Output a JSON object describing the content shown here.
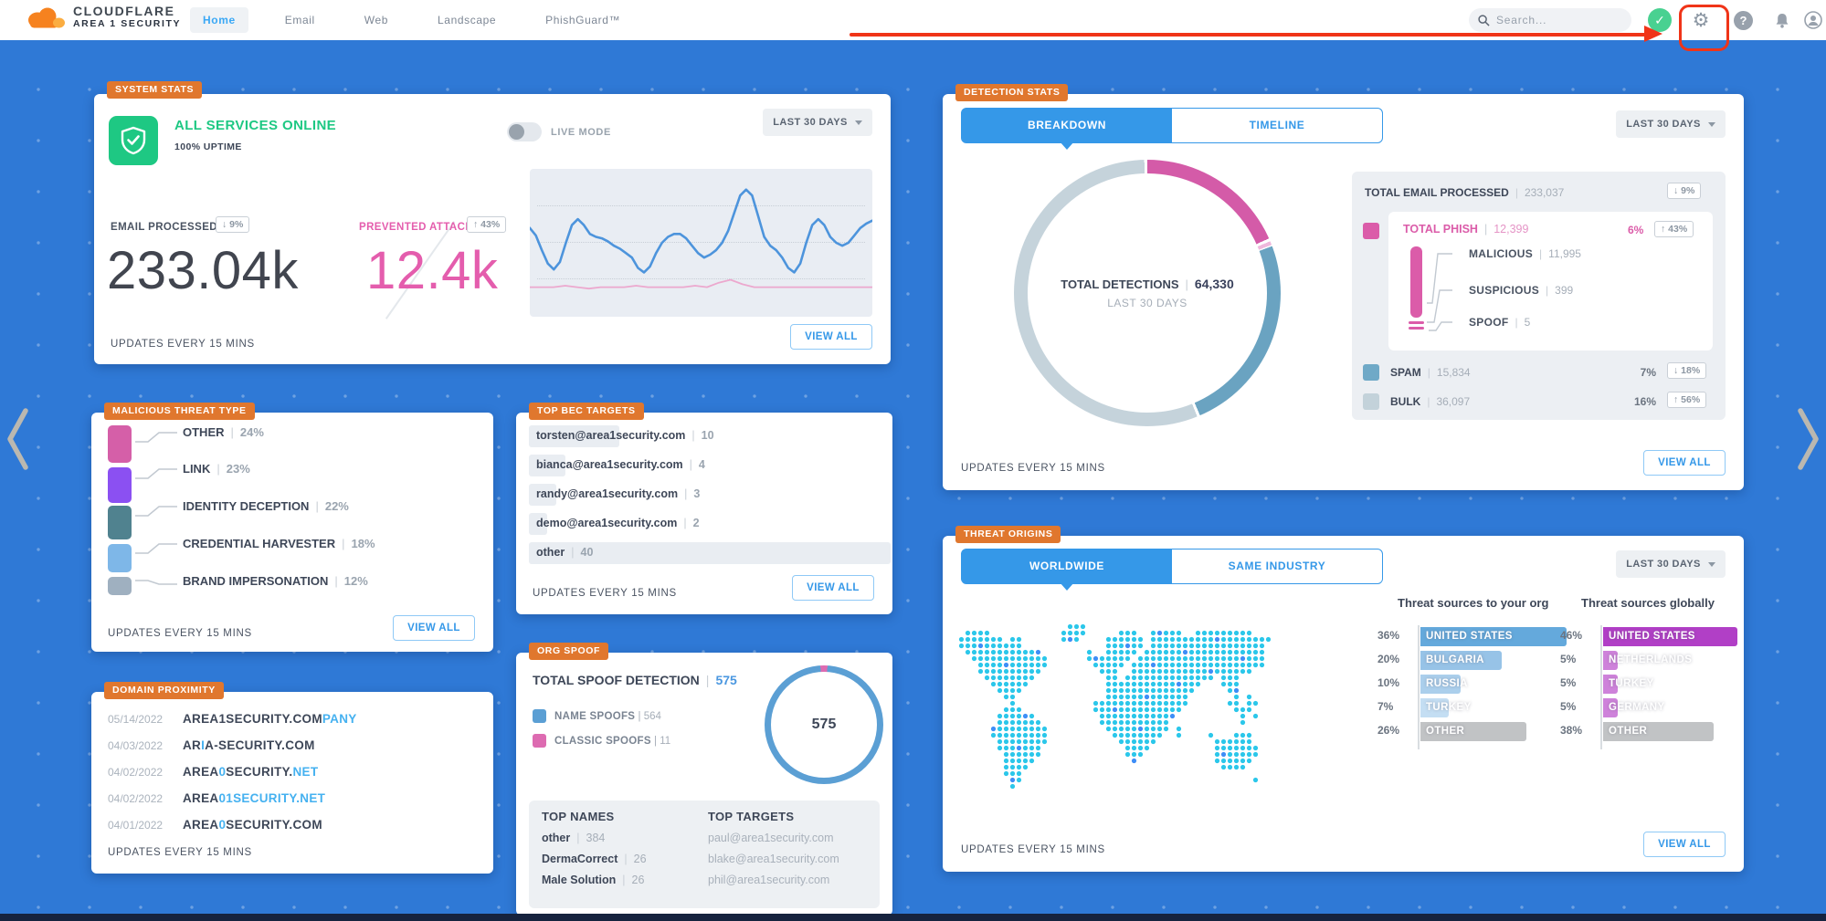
{
  "ui": {
    "divider": "|"
  },
  "header": {
    "logo": {
      "line1": "CLOUDFLARE",
      "line2": "AREA 1 SECURITY"
    },
    "nav": [
      {
        "label": "Home"
      },
      {
        "label": "Email"
      },
      {
        "label": "Web"
      },
      {
        "label": "Landscape"
      },
      {
        "label": "PhishGuard™"
      }
    ],
    "search": {
      "placeholder": "Search..."
    },
    "status_check": "✓",
    "gear_glyph": "⚙",
    "help_glyph": "?"
  },
  "cards": {
    "system_stats": {
      "tag": "SYSTEM STATS",
      "status_title": "ALL SERVICES ONLINE",
      "uptime": "100% UPTIME",
      "live_mode_label": "LIVE MODE",
      "range_label": "LAST 30 DAYS",
      "email_processed": {
        "label": "EMAIL PROCESSED",
        "badge": "↓ 9%",
        "value": "233.04k"
      },
      "prevented_attacks": {
        "label": "PREVENTED ATTACKS",
        "badge": "↑ 43%",
        "value": "12.4k"
      },
      "sparkline": {
        "blue": [
          40,
          45,
          55,
          64,
          68,
          63,
          50,
          38,
          34,
          38,
          44,
          46,
          47,
          49,
          52,
          54,
          57,
          60,
          67,
          70,
          66,
          57,
          50,
          46,
          44,
          44,
          47,
          52,
          57,
          60,
          58,
          55,
          50,
          42,
          30,
          18,
          14,
          18,
          32,
          46,
          52,
          55,
          60,
          67,
          70,
          64,
          50,
          38,
          34,
          38,
          46,
          50,
          52,
          50,
          45,
          40,
          37,
          35
        ],
        "pink": [
          80,
          80,
          80,
          79,
          80,
          81,
          80,
          80,
          80,
          79,
          80,
          80,
          80,
          80,
          79,
          80,
          77,
          75,
          78,
          80,
          80,
          80,
          80,
          80,
          80,
          80,
          80,
          80,
          80,
          80
        ]
      },
      "updates_label": "UPDATES EVERY 15 MINS",
      "view_all_label": "VIEW ALL"
    },
    "malicious_threat_type": {
      "tag": "MALICIOUS THREAT TYPE",
      "items": [
        {
          "label": "OTHER",
          "pct": "24%",
          "value": 24,
          "color": "#D55FA8"
        },
        {
          "label": "LINK",
          "pct": "23%",
          "value": 23,
          "color": "#8B50F2"
        },
        {
          "label": "IDENTITY DECEPTION",
          "pct": "22%",
          "value": 22,
          "color": "#50828F"
        },
        {
          "label": "CREDENTIAL HARVESTER",
          "pct": "18%",
          "value": 18,
          "color": "#7EB7E8"
        },
        {
          "label": "BRAND IMPERSONATION",
          "pct": "12%",
          "value": 12,
          "color": "#9FB0C0"
        }
      ],
      "updates_label": "UPDATES EVERY 15 MINS",
      "view_all_label": "VIEW ALL"
    },
    "domain_proximity": {
      "tag": "DOMAIN PROXIMITY",
      "rows": [
        {
          "date": "05/14/2022",
          "parts": [
            {
              "t": "AREA1SECURITY.COM",
              "hl": false
            },
            {
              "t": "PANY",
              "hl": true
            }
          ]
        },
        {
          "date": "04/03/2022",
          "parts": [
            {
              "t": "AR",
              "hl": false
            },
            {
              "t": "I",
              "hl": true
            },
            {
              "t": "A-SECURITY.COM",
              "hl": false
            }
          ]
        },
        {
          "date": "04/02/2022",
          "parts": [
            {
              "t": "AREA",
              "hl": false
            },
            {
              "t": "0",
              "hl": true
            },
            {
              "t": "SECURITY.",
              "hl": false
            },
            {
              "t": "NET",
              "hl": true
            }
          ]
        },
        {
          "date": "04/02/2022",
          "parts": [
            {
              "t": "AREA",
              "hl": false
            },
            {
              "t": "01SECURITY.NET",
              "hl": true
            }
          ]
        },
        {
          "date": "04/01/2022",
          "parts": [
            {
              "t": "AREA",
              "hl": false
            },
            {
              "t": "0",
              "hl": true
            },
            {
              "t": "SECURITY.COM",
              "hl": false
            }
          ]
        }
      ],
      "updates_label": "UPDATES EVERY 15 MINS"
    },
    "top_bec_targets": {
      "tag": "TOP BEC TARGETS",
      "rows": [
        {
          "email": "torsten@area1security.com",
          "count": "10",
          "value": 10
        },
        {
          "email": "bianca@area1security.com",
          "count": "4",
          "value": 4
        },
        {
          "email": "randy@area1security.com",
          "count": "3",
          "value": 3
        },
        {
          "email": "demo@area1security.com",
          "count": "2",
          "value": 2
        },
        {
          "email": "other",
          "count": "40",
          "value": 40
        }
      ],
      "updates_label": "UPDATES EVERY 15 MINS",
      "view_all_label": "VIEW ALL"
    },
    "org_spoof": {
      "tag": "ORG SPOOF",
      "title": "TOTAL SPOOF DETECTION",
      "total": "575",
      "legend": [
        {
          "label": "NAME SPOOFS",
          "value": "564",
          "color": "#5B9FD4"
        },
        {
          "label": "CLASSIC SPOOFS",
          "value": "11",
          "color": "#DD6BB1"
        }
      ],
      "donut_center": "575",
      "top_names": {
        "title": "TOP NAMES",
        "rows": [
          {
            "name": "other",
            "count": "384"
          },
          {
            "name": "DermaCorrect",
            "count": "26"
          },
          {
            "name": "Male Solution",
            "count": "26"
          }
        ]
      },
      "top_targets": {
        "title": "TOP TARGETS",
        "rows": [
          "paul@area1security.com",
          "blake@area1security.com",
          "phil@area1security.com"
        ]
      }
    },
    "detection_stats": {
      "tag": "DETECTION STATS",
      "tabs": [
        "BREAKDOWN",
        "TIMELINE"
      ],
      "range_label": "LAST 30 DAYS",
      "donut": {
        "center_label": "TOTAL DETECTIONS",
        "center_value": "64,330",
        "center_sub": "LAST 30 DAYS",
        "segments": [
          {
            "name": "MALICIOUS PHISH",
            "value": 11995,
            "color": "#D45BA8"
          },
          {
            "name": "SUSPICIOUS + SPOOF",
            "value": 404,
            "color": "#EFB8DC"
          },
          {
            "name": "SPAM",
            "value": 15834,
            "color": "#6AA3C1"
          },
          {
            "name": "BULK",
            "value": 36097,
            "color": "#C5D3DB"
          }
        ]
      },
      "total_email": {
        "label": "TOTAL EMAIL PROCESSED",
        "value": "233,037",
        "badge": "↓ 9%"
      },
      "phish": {
        "label": "TOTAL PHISH",
        "value": "12,399",
        "pct": "6%",
        "badge": "↑ 43%",
        "color": "#DB5CA9",
        "children": [
          {
            "label": "MALICIOUS",
            "value": "11,995"
          },
          {
            "label": "SUSPICIOUS",
            "value": "399"
          },
          {
            "label": "SPOOF",
            "value": "5"
          }
        ]
      },
      "rows": [
        {
          "label": "SPAM",
          "value": "15,834",
          "pct": "7%",
          "badge": "↓ 18%",
          "color": "#6FA9C7"
        },
        {
          "label": "BULK",
          "value": "36,097",
          "pct": "16%",
          "badge": "↑ 56%",
          "color": "#C3D2DA"
        }
      ],
      "updates_label": "UPDATES EVERY 15 MINS",
      "view_all_label": "VIEW ALL"
    },
    "threat_origins": {
      "tag": "THREAT ORIGINS",
      "tabs": [
        "WORLDWIDE",
        "SAME INDUSTRY"
      ],
      "range_label": "LAST 30 DAYS",
      "org_column": {
        "title": "Threat sources to your org",
        "rows": [
          {
            "pct": "36%",
            "label": "UNITED STATES",
            "value": 36,
            "color": "#64A9DC"
          },
          {
            "pct": "20%",
            "label": "BULGARIA",
            "value": 20,
            "color": "#97C3E7"
          },
          {
            "pct": "10%",
            "label": "RUSSIA",
            "value": 10,
            "color": "#ABCFEC"
          },
          {
            "pct": "7%",
            "label": "TURKEY",
            "value": 7,
            "color": "#C4DEF3"
          },
          {
            "pct": "26%",
            "label": "OTHER",
            "value": 26,
            "color": "#C1C3C5"
          }
        ]
      },
      "global_column": {
        "title": "Threat sources globally",
        "rows": [
          {
            "pct": "46%",
            "label": "UNITED STATES",
            "value": 46,
            "color": "#B13FC6"
          },
          {
            "pct": "5%",
            "label": "NETHERLANDS",
            "value": 5,
            "color": "#CE82DA"
          },
          {
            "pct": "5%",
            "label": "TURKEY",
            "value": 5,
            "color": "#CE82DA"
          },
          {
            "pct": "5%",
            "label": "GERMANY",
            "value": 5,
            "color": "#CE82DA"
          },
          {
            "pct": "38%",
            "label": "OTHER",
            "value": 38,
            "color": "#C1C3C5"
          }
        ]
      },
      "map_colors": {
        "dot": "#2BC7EA",
        "accent": "#3E8EF7"
      },
      "updates_label": "UPDATES EVERY 15 MINS",
      "view_all_label": "VIEW ALL"
    }
  }
}
